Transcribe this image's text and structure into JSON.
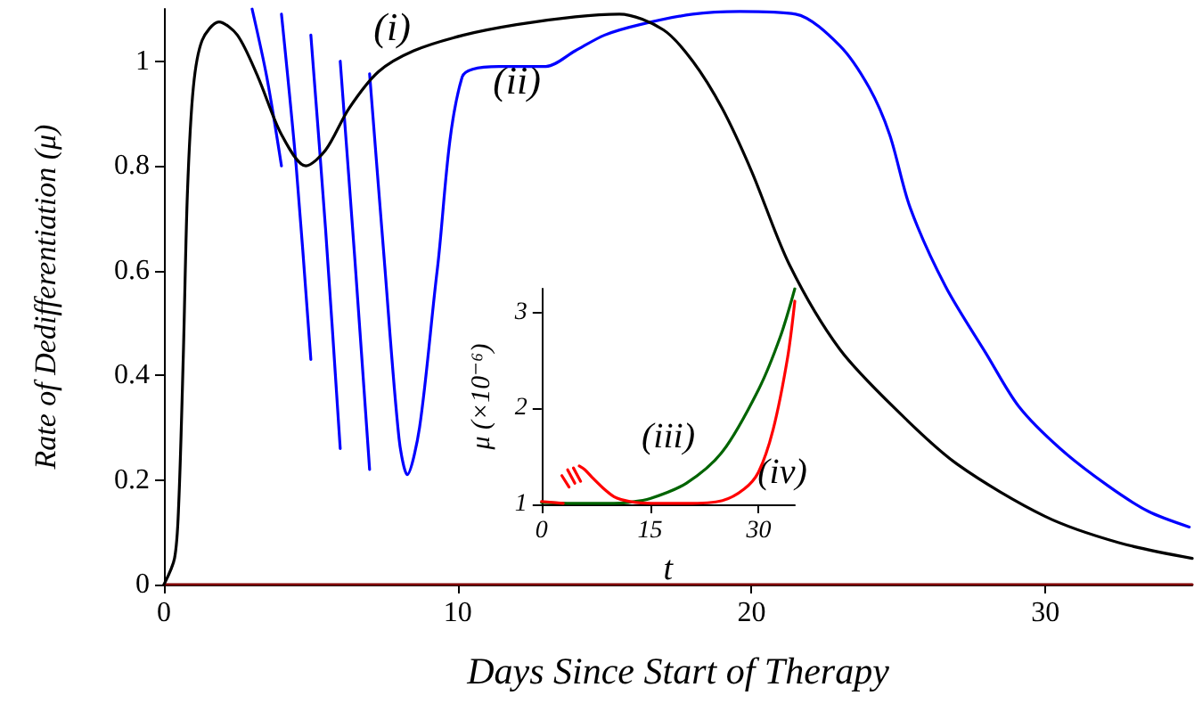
{
  "chart_data": [
    {
      "type": "line",
      "xlabel": "Days Since Start of Therapy",
      "ylabel": "Rate of Dedifferentiation (μ)",
      "xlim": [
        0,
        35
      ],
      "xticks": [
        0,
        10,
        20,
        30
      ],
      "ylim": [
        0,
        1.1
      ],
      "yticks": [
        0,
        0.2,
        0.4,
        0.6,
        0.8,
        1
      ],
      "grid": false,
      "marker": "none",
      "series": [
        {
          "color": "#800000",
          "x": [
            0,
            35
          ],
          "values": [
            0,
            0
          ]
        },
        {
          "color": "#0000ff",
          "x": [
            3.0,
            3.5,
            4.0
          ],
          "values": [
            1.1,
            0.97,
            0.8
          ]
        },
        {
          "color": "#0000ff",
          "x": [
            4.0,
            4.5,
            5.0
          ],
          "values": [
            1.09,
            0.8,
            0.43
          ]
        },
        {
          "color": "#0000ff",
          "x": [
            5.0,
            5.5,
            6.0
          ],
          "values": [
            1.05,
            0.68,
            0.26
          ]
        },
        {
          "color": "#0000ff",
          "x": [
            6.0,
            6.5,
            7.0
          ],
          "values": [
            1.0,
            0.62,
            0.22
          ]
        },
        {
          "color": "#0000ff",
          "x": [
            7.0,
            7.5,
            8.0,
            8.28,
            8.7,
            9.3,
            10.15,
            11.4,
            13,
            14,
            15,
            16.2,
            18,
            19.6,
            21.5,
            23,
            24,
            24.7,
            25.4,
            26.6,
            28,
            29.1,
            30.5,
            32.1,
            33.5,
            34.9
          ],
          "values": [
            0.976,
            0.62,
            0.28,
            0.21,
            0.3,
            0.6,
            0.97,
            0.99,
            0.99,
            1.02,
            1.05,
            1.07,
            1.09,
            1.095,
            1.09,
            1.03,
            0.95,
            0.86,
            0.72,
            0.57,
            0.44,
            0.34,
            0.26,
            0.19,
            0.14,
            0.11
          ]
        },
        {
          "color": "#000000",
          "x": [
            0,
            0.36,
            0.5,
            0.66,
            0.8,
            1.0,
            1.3,
            1.87,
            2.5,
            3.2,
            4.0,
            4.83,
            5.5,
            6.3,
            7.3,
            8.5,
            10.2,
            12,
            14,
            15.5,
            17,
            18,
            19,
            20,
            21.3,
            23,
            25,
            27,
            30,
            32.5,
            35
          ],
          "values": [
            0,
            0.05,
            0.15,
            0.44,
            0.75,
            0.95,
            1.04,
            1.075,
            1.05,
            0.97,
            0.86,
            0.8,
            0.83,
            0.91,
            0.98,
            1.02,
            1.05,
            1.07,
            1.085,
            1.09,
            1.06,
            1.0,
            0.91,
            0.79,
            0.61,
            0.45,
            0.33,
            0.23,
            0.13,
            0.08,
            0.05
          ]
        }
      ],
      "annotations": [
        "(i)",
        "(ii)"
      ]
    },
    {
      "type": "line",
      "xlabel": "t",
      "ylabel": "μ (×10⁻⁶)",
      "xlim": [
        0,
        35
      ],
      "xticks": [
        0,
        15,
        30
      ],
      "ylim": [
        1,
        3.25
      ],
      "yticks": [
        1,
        2,
        3
      ],
      "grid": false,
      "marker": "none",
      "series": [
        {
          "color": "#006400",
          "x": [
            0,
            5,
            10,
            12,
            15,
            20,
            25,
            30,
            33,
            35
          ],
          "values": [
            1.02,
            1.01,
            1.01,
            1.02,
            1.06,
            1.22,
            1.55,
            2.2,
            2.75,
            3.25
          ]
        },
        {
          "color": "#ff0000",
          "x": [
            0,
            3
          ],
          "values": [
            1.03,
            1.01
          ]
        },
        {
          "color": "#ff0000",
          "x": [
            2.8,
            3.8
          ],
          "values": [
            1.3,
            1.18
          ]
        },
        {
          "color": "#ff0000",
          "x": [
            3.6,
            4.6
          ],
          "values": [
            1.36,
            1.22
          ]
        },
        {
          "color": "#ff0000",
          "x": [
            4.4,
            5.4
          ],
          "values": [
            1.38,
            1.24
          ]
        },
        {
          "color": "#ff0000",
          "x": [
            5.2,
            6,
            7,
            8.5,
            10,
            11,
            13,
            16,
            20,
            25,
            28,
            30,
            32,
            34,
            35
          ],
          "values": [
            1.4,
            1.36,
            1.28,
            1.17,
            1.08,
            1.05,
            1.02,
            1.01,
            1.01,
            1.04,
            1.16,
            1.34,
            1.78,
            2.53,
            3.12
          ]
        }
      ],
      "annotations": [
        "(iii)",
        "(iv)"
      ]
    }
  ]
}
